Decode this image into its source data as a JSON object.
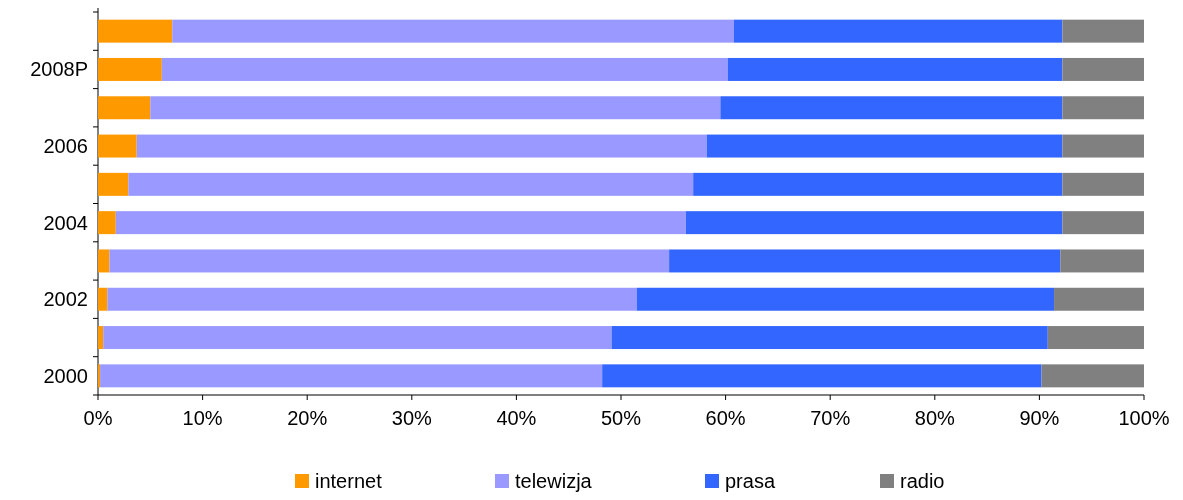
{
  "chart_data": {
    "type": "bar",
    "orientation": "horizontal",
    "stacked": true,
    "categories": [
      null,
      "2008P",
      null,
      "2006",
      null,
      "2004",
      null,
      "2002",
      null,
      "2000"
    ],
    "series": [
      {
        "name": "internet",
        "color": "#ff9900",
        "values": [
          7.1,
          6.1,
          5.0,
          3.7,
          2.9,
          1.7,
          1.1,
          0.9,
          0.5,
          0.2
        ]
      },
      {
        "name": "telewizja",
        "color": "#9999ff",
        "values": [
          53.7,
          54.1,
          54.5,
          54.5,
          54.0,
          54.5,
          53.5,
          50.6,
          48.6,
          48.0
        ]
      },
      {
        "name": "prasa",
        "color": "#3366ff",
        "values": [
          31.4,
          32.0,
          32.7,
          34.0,
          35.3,
          36.0,
          37.4,
          39.9,
          41.7,
          42.0
        ]
      },
      {
        "name": "radio",
        "color": "#808080",
        "values": [
          7.8,
          7.8,
          7.8,
          7.8,
          7.8,
          7.8,
          8.0,
          8.6,
          9.2,
          9.8
        ]
      }
    ],
    "xlim": [
      0,
      100
    ],
    "xticks": [
      {
        "value": 0,
        "label": "0%"
      },
      {
        "value": 10,
        "label": "10%"
      },
      {
        "value": 20,
        "label": "20%"
      },
      {
        "value": 30,
        "label": "30%"
      },
      {
        "value": 40,
        "label": "40%"
      },
      {
        "value": 50,
        "label": "50%"
      },
      {
        "value": 60,
        "label": "60%"
      },
      {
        "value": 70,
        "label": "70%"
      },
      {
        "value": 80,
        "label": "80%"
      },
      {
        "value": 90,
        "label": "90%"
      },
      {
        "value": 100,
        "label": "100%"
      }
    ],
    "legend": "bottom",
    "grid": false
  }
}
